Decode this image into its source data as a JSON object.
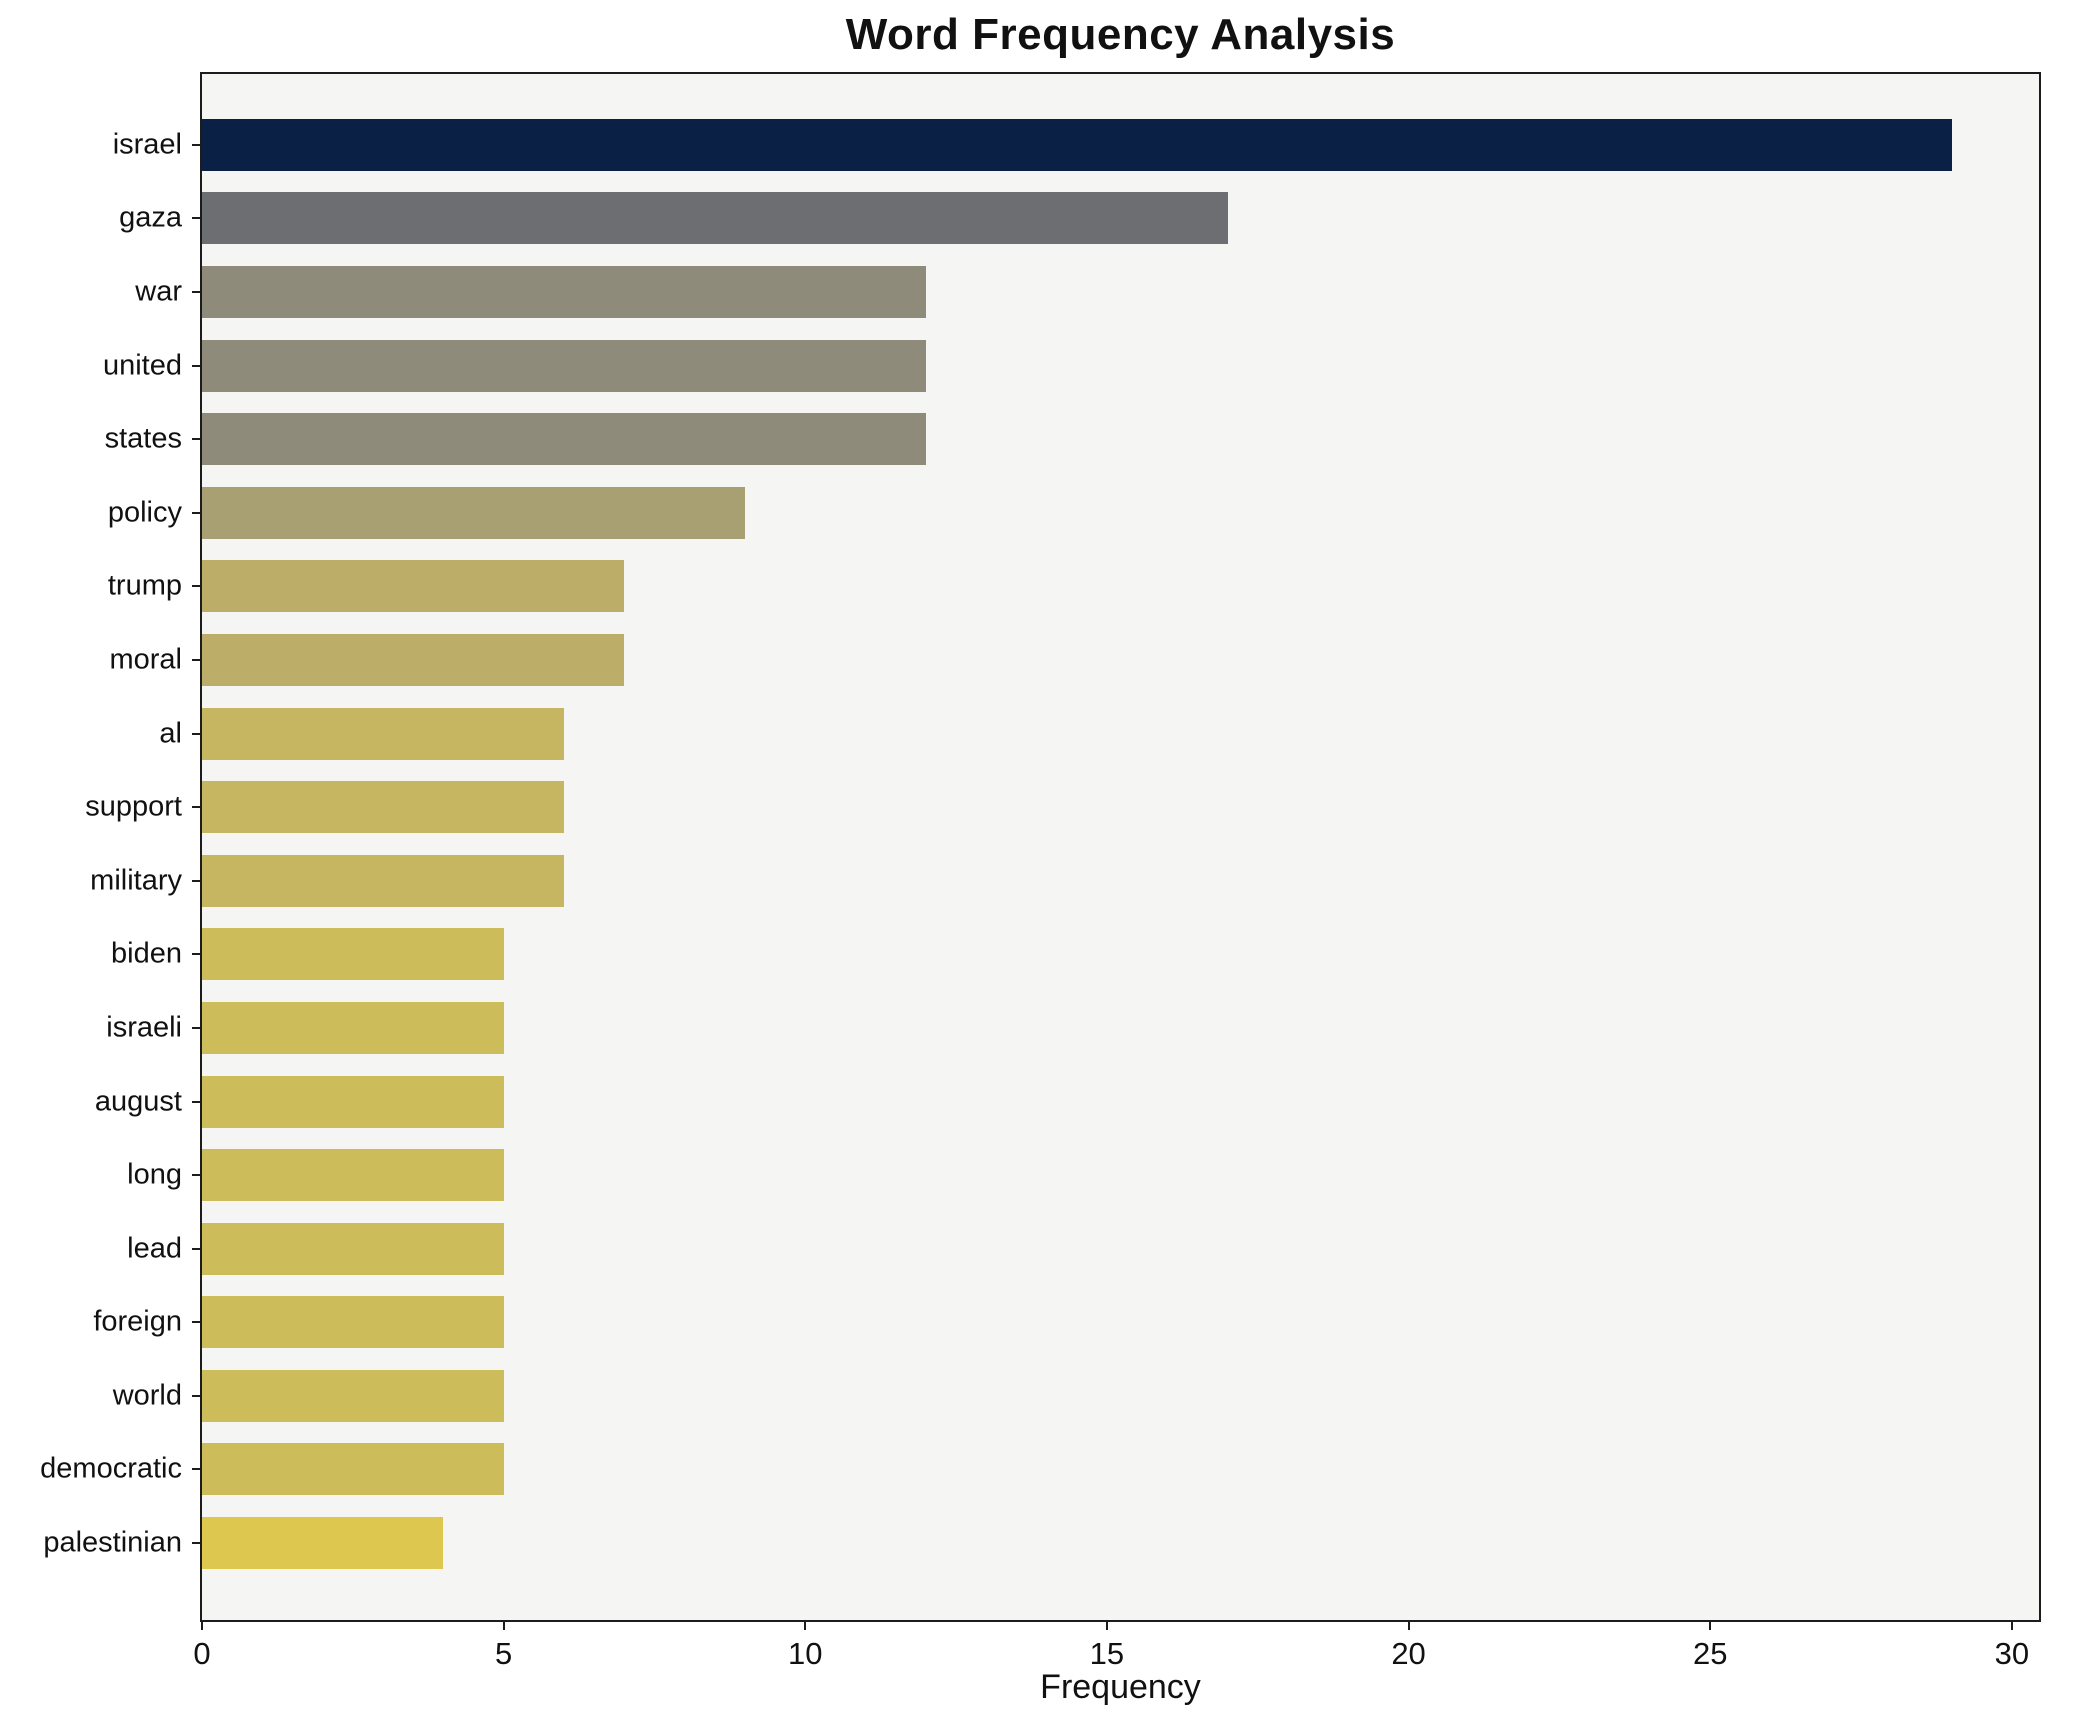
{
  "chart_data": {
    "type": "bar",
    "orientation": "horizontal",
    "title": "Word Frequency Analysis",
    "xlabel": "Frequency",
    "ylabel": "",
    "xlim": [
      0,
      30.45
    ],
    "xticks": [
      0,
      5,
      10,
      15,
      20,
      25,
      30
    ],
    "grid": false,
    "plot_background": "#f5f5f3",
    "categories": [
      "israel",
      "gaza",
      "war",
      "united",
      "states",
      "policy",
      "trump",
      "moral",
      "al",
      "support",
      "military",
      "biden",
      "israeli",
      "august",
      "long",
      "lead",
      "foreign",
      "world",
      "democratic",
      "palestinian"
    ],
    "values": [
      29,
      17,
      12,
      12,
      12,
      9,
      7,
      7,
      6,
      6,
      6,
      5,
      5,
      5,
      5,
      5,
      5,
      5,
      5,
      4
    ],
    "bar_colors": [
      "#0b2045",
      "#6d6e71",
      "#8e8b7b",
      "#8e8b7b",
      "#8e8b7b",
      "#a89f72",
      "#bcae68",
      "#bcae68",
      "#c6b661",
      "#c6b661",
      "#c6b661",
      "#cdbc5a",
      "#cdbc5a",
      "#cdbc5a",
      "#cdbc5a",
      "#cdbc5a",
      "#cdbc5a",
      "#cdbc5a",
      "#cdbc5a",
      "#ddc74f"
    ]
  }
}
